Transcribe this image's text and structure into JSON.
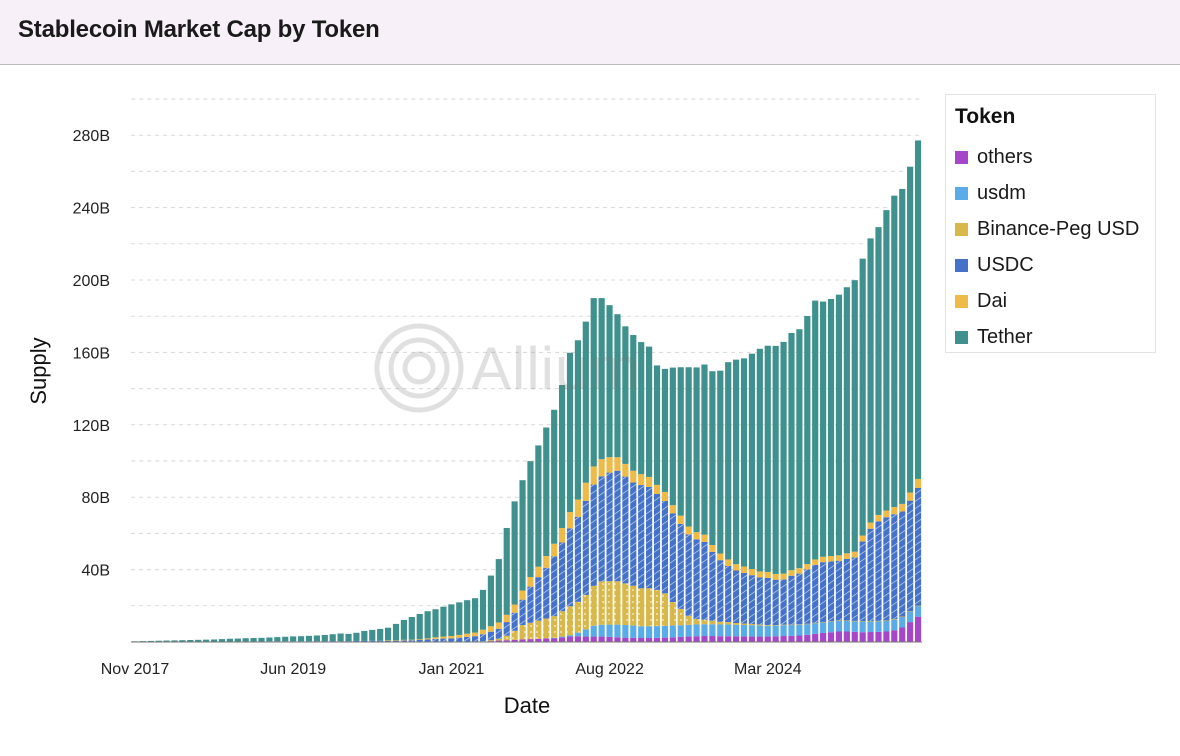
{
  "header": {
    "title": "Stablecoin Market Cap by Token"
  },
  "watermark": {
    "text": "Allium"
  },
  "legend": {
    "title": "Token",
    "items": [
      {
        "label": "others",
        "color": "#a646c8"
      },
      {
        "label": "usdm",
        "color": "#5aace8"
      },
      {
        "label": "Binance-Peg USD",
        "color": "#d9b84a"
      },
      {
        "label": "USDC",
        "color": "#4472c8"
      },
      {
        "label": "Dai",
        "color": "#eeba48"
      },
      {
        "label": "Tether",
        "color": "#3e918d"
      }
    ]
  },
  "chart_data": {
    "type": "bar",
    "stacked": true,
    "xlabel": "Date",
    "ylabel": "Supply",
    "x_ticks": [
      "Nov 2017",
      "Jun 2019",
      "Jan 2021",
      "Aug 2022",
      "Mar 2024"
    ],
    "y_ticks": [
      "40B",
      "80B",
      "120B",
      "160B",
      "200B",
      "240B",
      "280B"
    ],
    "ylim": [
      0,
      300
    ],
    "y_unit": "B",
    "grid": true,
    "legend_position": "right",
    "x_start": "Nov 2017",
    "x_end": "Apr 2025",
    "interval": "monthly",
    "series": [
      {
        "name": "Tether",
        "color": "#3e918d",
        "values": [
          0.4,
          0.5,
          0.6,
          0.7,
          0.8,
          0.9,
          1.0,
          1.1,
          1.2,
          1.3,
          1.4,
          1.5,
          1.6,
          1.7,
          1.8,
          1.9,
          2.0,
          2.1,
          2.3,
          2.5,
          2.7,
          2.8,
          3.0,
          3.2,
          3.4,
          3.8,
          4.2,
          4.0,
          4.5,
          5.5,
          6.0,
          6.5,
          7.0,
          9.0,
          11.0,
          12.5,
          14.0,
          15.0,
          15.5,
          16.5,
          17.5,
          18.0,
          18.5,
          19.0,
          22.0,
          28.0,
          35.0,
          48.0,
          57.0,
          61.0,
          64.0,
          67.0,
          71.0,
          74.0,
          79.0,
          88.0,
          88.0,
          89.0,
          93.0,
          89.0,
          84.0,
          79.0,
          76.0,
          75.0,
          73.0,
          72.0,
          66.0,
          68.0,
          76.0,
          82.0,
          88.0,
          91.0,
          94.0,
          96.0,
          101.0,
          109.0,
          113.0,
          115.0,
          119.0,
          123.0,
          125.0,
          126.0,
          128.0,
          131.0,
          132.0,
          137.0,
          143.0,
          141.0,
          142.0,
          144.0,
          147.0,
          150.0,
          153.0,
          157.0,
          159.0,
          166.0,
          172.0,
          174.0,
          180.0,
          187.0
        ]
      },
      {
        "name": "Dai",
        "color": "#eeba48",
        "values": [
          0.0,
          0.0,
          0.0,
          0.0,
          0.0,
          0.0,
          0.0,
          0.0,
          0.0,
          0.0,
          0.0,
          0.0,
          0.0,
          0.0,
          0.0,
          0.0,
          0.0,
          0.0,
          0.0,
          0.0,
          0.0,
          0.0,
          0.0,
          0.0,
          0.0,
          0.0,
          0.0,
          0.0,
          0.0,
          0.0,
          0.0,
          0.0,
          0.1,
          0.1,
          0.2,
          0.3,
          0.4,
          0.6,
          0.9,
          1.1,
          1.3,
          1.5,
          1.8,
          2.0,
          2.5,
          3.0,
          3.5,
          4.0,
          4.5,
          5.0,
          5.3,
          5.8,
          6.5,
          7.0,
          8.0,
          9.0,
          9.5,
          10.0,
          10.0,
          9.5,
          8.5,
          7.5,
          7.0,
          6.5,
          6.0,
          5.5,
          5.0,
          5.0,
          4.5,
          4.5,
          4.3,
          4.0,
          4.0,
          3.8,
          3.7,
          3.6,
          3.5,
          3.5,
          3.4,
          3.3,
          3.3,
          3.2,
          3.2,
          3.1,
          3.0,
          3.0,
          3.0,
          3.0,
          3.0,
          3.0,
          3.1,
          3.2,
          3.3,
          3.4,
          3.5,
          3.7,
          4.0,
          4.2,
          4.5,
          5.0
        ]
      },
      {
        "name": "USDC",
        "color": "#4472c8",
        "values": [
          0.0,
          0.0,
          0.0,
          0.0,
          0.0,
          0.0,
          0.0,
          0.0,
          0.0,
          0.0,
          0.0,
          0.1,
          0.2,
          0.2,
          0.3,
          0.3,
          0.3,
          0.4,
          0.4,
          0.4,
          0.4,
          0.4,
          0.4,
          0.4,
          0.5,
          0.5,
          0.5,
          0.5,
          0.6,
          0.6,
          0.7,
          0.7,
          0.8,
          0.9,
          1.0,
          1.0,
          1.1,
          1.4,
          1.7,
          1.9,
          2.0,
          2.4,
          2.8,
          3.2,
          3.9,
          4.7,
          5.5,
          7.5,
          10.0,
          14.0,
          20.0,
          24.0,
          28.0,
          33.0,
          38.0,
          43.0,
          47.0,
          52.0,
          56.0,
          58.0,
          60.0,
          61.0,
          59.0,
          57.0,
          57.0,
          56.0,
          53.0,
          51.0,
          49.0,
          47.0,
          45.0,
          44.0,
          43.0,
          38.0,
          34.0,
          31.0,
          29.0,
          28.0,
          27.0,
          26.0,
          26.0,
          25.0,
          25.0,
          27.0,
          28.0,
          30.0,
          32.0,
          33.0,
          33.0,
          33.0,
          34.0,
          35.0,
          44.0,
          51.0,
          55.0,
          57.0,
          58.0,
          58.0,
          61.0,
          65.0
        ]
      },
      {
        "name": "Binance-Peg USD",
        "color": "#d9b84a",
        "values": [
          0.0,
          0.0,
          0.0,
          0.0,
          0.0,
          0.0,
          0.0,
          0.0,
          0.0,
          0.0,
          0.0,
          0.0,
          0.0,
          0.0,
          0.0,
          0.0,
          0.0,
          0.0,
          0.0,
          0.0,
          0.0,
          0.0,
          0.0,
          0.0,
          0.0,
          0.0,
          0.0,
          0.0,
          0.0,
          0.0,
          0.0,
          0.0,
          0.0,
          0.0,
          0.0,
          0.0,
          0.0,
          0.0,
          0.0,
          0.0,
          0.0,
          0.0,
          0.0,
          0.0,
          0.2,
          0.5,
          1.0,
          2.5,
          5.0,
          8.0,
          9.0,
          10.0,
          11.0,
          12.0,
          14.0,
          16.0,
          17.0,
          19.0,
          22.0,
          24.0,
          24.0,
          24.0,
          23.0,
          22.0,
          21.0,
          21.0,
          20.0,
          18.0,
          13.0,
          9.0,
          5.0,
          3.0,
          2.5,
          2.0,
          1.5,
          1.3,
          1.0,
          0.8,
          0.6,
          0.5,
          0.4,
          0.3,
          0.3,
          0.2,
          0.2,
          0.1,
          0.1,
          0.1,
          0.1,
          0.1,
          0.1,
          0.1,
          0.1,
          0.1,
          0.1,
          0.1,
          0.1,
          0.1,
          0.1,
          0.1
        ]
      },
      {
        "name": "usdm",
        "color": "#5aace8",
        "values": [
          0.0,
          0.0,
          0.0,
          0.0,
          0.0,
          0.0,
          0.0,
          0.0,
          0.0,
          0.0,
          0.0,
          0.0,
          0.0,
          0.0,
          0.0,
          0.0,
          0.0,
          0.0,
          0.0,
          0.0,
          0.0,
          0.0,
          0.0,
          0.0,
          0.0,
          0.0,
          0.0,
          0.0,
          0.0,
          0.0,
          0.0,
          0.0,
          0.0,
          0.0,
          0.0,
          0.0,
          0.0,
          0.0,
          0.0,
          0.0,
          0.0,
          0.0,
          0.0,
          0.0,
          0.0,
          0.0,
          0.0,
          0.0,
          0.0,
          0.0,
          0.0,
          0.0,
          0.0,
          0.1,
          0.4,
          0.8,
          2.0,
          4.0,
          6.0,
          6.5,
          6.8,
          7.0,
          7.0,
          6.8,
          6.5,
          6.5,
          6.5,
          6.5,
          6.5,
          6.5,
          6.5,
          6.5,
          6.5,
          6.5,
          6.5,
          6.5,
          6.4,
          6.3,
          6.3,
          6.2,
          6.0,
          6.0,
          6.0,
          6.0,
          6.0,
          6.0,
          6.0,
          6.0,
          6.0,
          6.0,
          6.0,
          6.0,
          6.0,
          6.0,
          6.0,
          6.0,
          6.0,
          6.0,
          6.0,
          6.0
        ]
      },
      {
        "name": "others",
        "color": "#a646c8",
        "values": [
          0.0,
          0.0,
          0.0,
          0.0,
          0.0,
          0.0,
          0.0,
          0.0,
          0.0,
          0.0,
          0.0,
          0.0,
          0.0,
          0.0,
          0.0,
          0.0,
          0.0,
          0.0,
          0.0,
          0.0,
          0.0,
          0.0,
          0.0,
          0.0,
          0.0,
          0.0,
          0.0,
          0.0,
          0.0,
          0.0,
          0.0,
          0.0,
          0.0,
          0.0,
          0.0,
          0.0,
          0.0,
          0.0,
          0.0,
          0.0,
          0.0,
          0.0,
          0.0,
          0.0,
          0.2,
          0.5,
          0.8,
          1.0,
          1.2,
          1.4,
          1.6,
          1.8,
          2.0,
          2.2,
          2.6,
          3.0,
          3.2,
          3.0,
          3.0,
          3.0,
          2.8,
          2.6,
          2.4,
          2.3,
          2.2,
          2.2,
          2.3,
          2.4,
          2.6,
          2.8,
          3.0,
          3.2,
          3.3,
          3.3,
          3.2,
          3.2,
          3.1,
          3.1,
          3.0,
          3.0,
          3.0,
          3.1,
          3.3,
          3.4,
          3.6,
          4.0,
          4.5,
          5.0,
          5.4,
          5.8,
          5.8,
          5.6,
          5.4,
          5.5,
          5.6,
          5.8,
          6.5,
          8.0,
          11.0,
          14.0
        ]
      }
    ]
  }
}
